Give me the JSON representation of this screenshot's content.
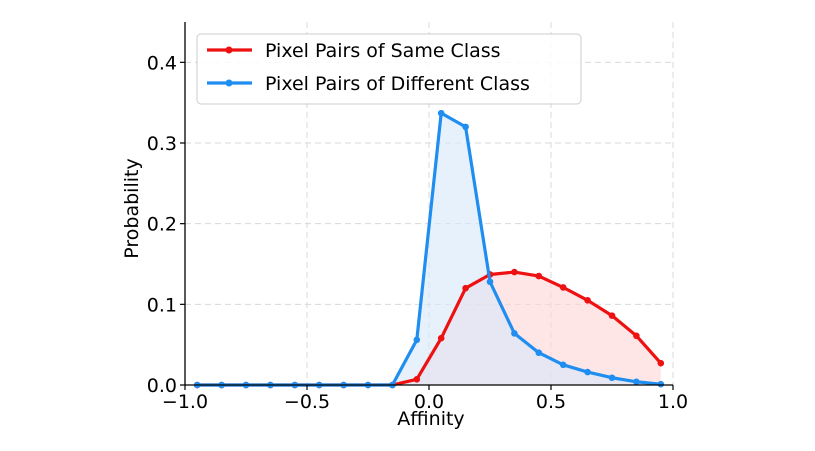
{
  "chart_data": {
    "type": "line",
    "title": "",
    "xlabel": "Affinity",
    "ylabel": "Probability",
    "xlim": [
      -1.0,
      1.0
    ],
    "ylim": [
      0.0,
      0.45
    ],
    "x_ticks": [
      "−1.0",
      "−0.5",
      "0.0",
      "0.5",
      "1.0"
    ],
    "y_ticks": [
      "0.0",
      "0.1",
      "0.2",
      "0.3",
      "0.4"
    ],
    "grid": true,
    "legend_position": "top-left",
    "x": [
      -0.95,
      -0.85,
      -0.75,
      -0.65,
      -0.55,
      -0.45,
      -0.35,
      -0.25,
      -0.15,
      -0.05,
      0.05,
      0.15,
      0.25,
      0.35,
      0.45,
      0.55,
      0.65,
      0.75,
      0.85,
      0.95
    ],
    "series": [
      {
        "name": "Pixel Pairs of Same Class",
        "color": "#ee1111",
        "fill": "#ffd6d6",
        "values": [
          0.0,
          0.0,
          0.0,
          0.0,
          0.0,
          0.0,
          0.0,
          0.0,
          0.0,
          0.007,
          0.058,
          0.12,
          0.137,
          0.14,
          0.135,
          0.121,
          0.105,
          0.086,
          0.061,
          0.027
        ]
      },
      {
        "name": "Pixel Pairs of Different Class",
        "color": "#1f8ef0",
        "fill": "#d6e8fa",
        "values": [
          0.0,
          0.0,
          0.0,
          0.0,
          0.0,
          0.0,
          0.0,
          0.0,
          0.0,
          0.056,
          0.337,
          0.32,
          0.128,
          0.064,
          0.04,
          0.025,
          0.016,
          0.009,
          0.004,
          0.001
        ]
      }
    ]
  }
}
